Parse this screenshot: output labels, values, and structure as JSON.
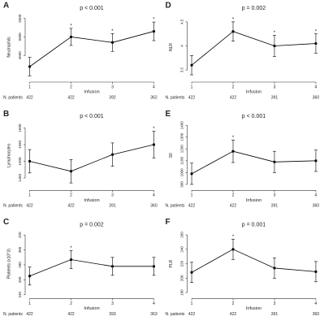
{
  "chart_data": [
    {
      "type": "line",
      "panel_label": "A",
      "title": "p < 0.001",
      "y_label": "Neutrophils",
      "x_label": "Infusion",
      "n_label": "N. patients",
      "x": [
        1,
        2,
        3,
        4
      ],
      "values": [
        4200,
        5000,
        4850,
        5150
      ],
      "errors": [
        250,
        230,
        240,
        250
      ],
      "significance": [
        null,
        "*",
        "*",
        "*"
      ],
      "n_patients": [
        422,
        422,
        392,
        362
      ],
      "color": "#000000",
      "xlim": [
        0.95,
        4.05
      ],
      "xticks": [
        1,
        2,
        3,
        4
      ],
      "ylim": [
        3850,
        5600
      ],
      "yticks": [
        4500,
        5000,
        5500
      ]
    },
    {
      "type": "line",
      "panel_label": "D",
      "title": "p = 0.002",
      "y_label": "NLR",
      "x_label": "Infusion",
      "n_label": "N. patients",
      "x": [
        1,
        2,
        3,
        4
      ],
      "values": [
        3.6,
        4.3,
        4.0,
        4.05
      ],
      "errors": [
        0.2,
        0.2,
        0.22,
        0.2
      ],
      "significance": [
        null,
        "*",
        "*",
        "*"
      ],
      "n_patients": [
        422,
        422,
        391,
        360
      ],
      "color": "#000000",
      "xlim": [
        0.95,
        4.05
      ],
      "xticks": [
        1,
        2,
        3,
        4
      ],
      "ylim": [
        3.3,
        4.65
      ],
      "yticks": [
        3.5,
        4,
        4.5
      ]
    },
    {
      "type": "line",
      "panel_label": "B",
      "title": "p < 0.001",
      "y_label": "Lymphocytes",
      "x_label": "Infusion",
      "n_label": "N. patients",
      "x": [
        1,
        2,
        3,
        4
      ],
      "values": [
        1500,
        1470,
        1520,
        1550
      ],
      "errors": [
        35,
        35,
        35,
        40
      ],
      "significance": [
        null,
        null,
        null,
        "*"
      ],
      "n_patients": [
        422,
        422,
        391,
        360
      ],
      "color": "#000000",
      "xlim": [
        0.95,
        4.05
      ],
      "xticks": [
        1,
        2,
        3,
        4
      ],
      "ylim": [
        1420,
        1615
      ],
      "yticks": [
        1450,
        1500,
        1550,
        1600
      ]
    },
    {
      "type": "line",
      "panel_label": "E",
      "title": "p < 0.001",
      "y_label": "SII",
      "x_label": "Infusion",
      "n_label": "N. patients",
      "x": [
        1,
        2,
        3,
        4
      ],
      "values": [
        990,
        1180,
        1090,
        1100
      ],
      "errors": [
        90,
        95,
        90,
        90
      ],
      "significance": [
        null,
        "*",
        null,
        null
      ],
      "n_patients": [
        422,
        422,
        391,
        360
      ],
      "color": "#000000",
      "xlim": [
        0.95,
        4.05
      ],
      "xticks": [
        1,
        2,
        3,
        4
      ],
      "ylim": [
        870,
        1420
      ],
      "yticks": [
        900,
        1000,
        1100,
        1200,
        1300,
        1400
      ]
    },
    {
      "type": "line",
      "panel_label": "C",
      "title": "p = 0.002",
      "y_label": "Platelets (x10^3)",
      "x_label": "Infusion",
      "n_label": "N. patients",
      "x": [
        1,
        2,
        3,
        4
      ],
      "values": [
        265,
        287,
        278,
        278
      ],
      "errors": [
        12,
        12,
        12,
        12
      ],
      "significance": [
        null,
        "*",
        null,
        null
      ],
      "n_patients": [
        422,
        422,
        393,
        363
      ],
      "color": "#000000",
      "xlim": [
        0.95,
        4.05
      ],
      "xticks": [
        1,
        2,
        3,
        4
      ],
      "ylim": [
        238,
        325
      ],
      "yticks": [
        240,
        260,
        280,
        300,
        320
      ]
    },
    {
      "type": "line",
      "panel_label": "F",
      "title": "p = 0.001",
      "y_label": "PLR",
      "x_label": "Infusion",
      "n_label": "N. patients",
      "x": [
        1,
        2,
        3,
        4
      ],
      "values": [
        208,
        240,
        214,
        209
      ],
      "errors": [
        14,
        14,
        14,
        14
      ],
      "significance": [
        null,
        "*",
        null,
        null
      ],
      "n_patients": [
        422,
        422,
        391,
        360
      ],
      "color": "#000000",
      "xlim": [
        0.95,
        4.05
      ],
      "xticks": [
        1,
        2,
        3,
        4
      ],
      "ylim": [
        175,
        265
      ],
      "yticks": [
        180,
        200,
        220,
        240,
        260
      ]
    }
  ]
}
